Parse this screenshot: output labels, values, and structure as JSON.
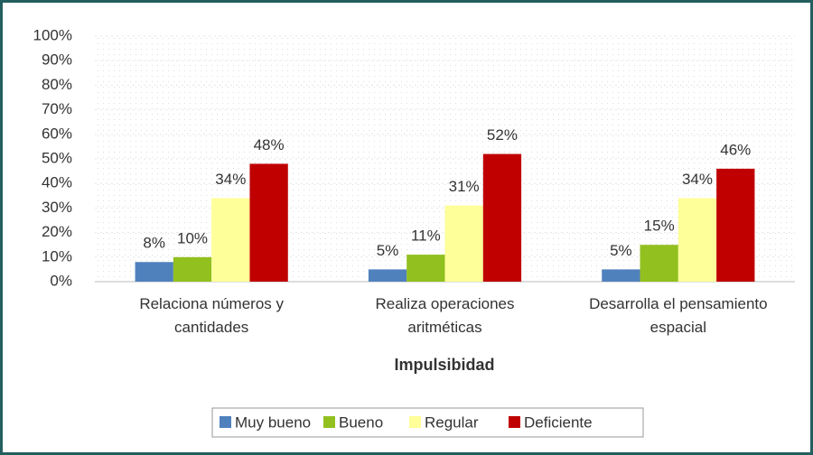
{
  "chart_data": {
    "type": "bar",
    "x_label": "Impulsibidad",
    "categories": [
      "Relaciona números y\ncantidades",
      "Realiza operaciones\naritméticas",
      "Desarrolla el pensamiento\nespacial"
    ],
    "series": [
      {
        "name": "Muy bueno",
        "color": "#4f81bd",
        "values": [
          8,
          5,
          5
        ],
        "value_labels": [
          "8%",
          "5%",
          "5%"
        ]
      },
      {
        "name": "Bueno",
        "color": "#92c01f",
        "values": [
          10,
          11,
          15
        ],
        "value_labels": [
          "10%",
          "11%",
          "15%"
        ]
      },
      {
        "name": "Regular",
        "color": "#ffff99",
        "values": [
          34,
          31,
          34
        ],
        "value_labels": [
          "34%",
          "31%",
          "34%"
        ]
      },
      {
        "name": "Deficiente",
        "color": "#c00000",
        "values": [
          48,
          52,
          46
        ],
        "value_labels": [
          "48%",
          "52%",
          "46%"
        ]
      }
    ],
    "ylim": [
      0,
      100
    ],
    "yticks": [
      {
        "value": 0,
        "label": "0%"
      },
      {
        "value": 10,
        "label": "10%"
      },
      {
        "value": 20,
        "label": "20%"
      },
      {
        "value": 30,
        "label": "30%"
      },
      {
        "value": 40,
        "label": "40%"
      },
      {
        "value": 50,
        "label": "50%"
      },
      {
        "value": 60,
        "label": "60%"
      },
      {
        "value": 70,
        "label": "70%"
      },
      {
        "value": 80,
        "label": "80%"
      },
      {
        "value": 90,
        "label": "90%"
      },
      {
        "value": 100,
        "label": "100%"
      }
    ],
    "grid": true,
    "legend": "bottom"
  }
}
